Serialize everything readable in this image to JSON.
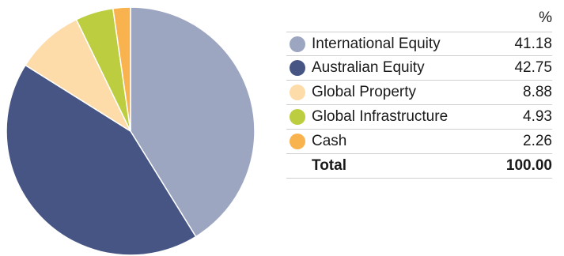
{
  "chart_data": {
    "type": "pie",
    "unit_header": "%",
    "categories": [
      "International Equity",
      "Australian Equity",
      "Global Property",
      "Global Infrastructure",
      "Cash"
    ],
    "values": [
      41.18,
      42.75,
      8.88,
      4.93,
      2.26
    ],
    "value_labels": [
      "41.18",
      "42.75",
      "8.88",
      "4.93",
      "2.26"
    ],
    "colors": [
      "#9da6c1",
      "#465584",
      "#fddcaa",
      "#bccd3f",
      "#f9b34e"
    ],
    "total_label": "Total",
    "total_value": "100.00",
    "legend_position": "right",
    "start_angle_deg": 0,
    "direction": "clockwise"
  }
}
